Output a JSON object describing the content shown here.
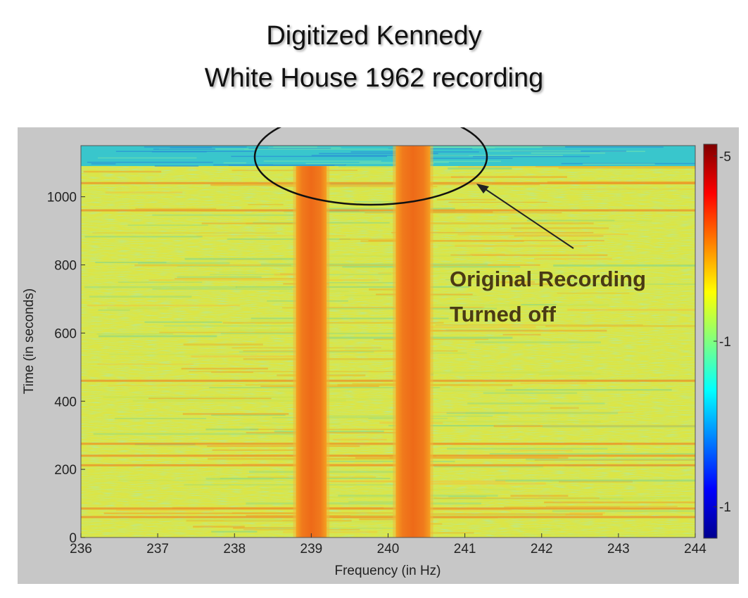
{
  "header": {
    "title_line1": "Digitized Kennedy",
    "title_line2": "White House 1962 recording"
  },
  "chart_data": {
    "type": "heatmap",
    "xlabel": "Frequency (in Hz)",
    "ylabel": "Time (in seconds)",
    "xlim": [
      236,
      244
    ],
    "ylim": [
      0,
      1150
    ],
    "x_ticks": [
      "236",
      "237",
      "238",
      "239",
      "240",
      "241",
      "242",
      "243",
      "244"
    ],
    "y_ticks": [
      "0",
      "200",
      "400",
      "600",
      "800",
      "1000"
    ],
    "colorbar": {
      "ticks": [
        "-5",
        "-1",
        "-1"
      ],
      "colormap": "jet"
    },
    "bands": [
      {
        "x_start": 238.8,
        "x_end": 239.2,
        "t_start": 0,
        "t_end": 1090
      },
      {
        "x_start": 240.1,
        "x_end": 240.55,
        "t_start": 0,
        "t_end": 1150
      }
    ],
    "recording_off_time": 1090,
    "annotation": {
      "line1": "Original Recording",
      "line2": "Turned off"
    }
  }
}
